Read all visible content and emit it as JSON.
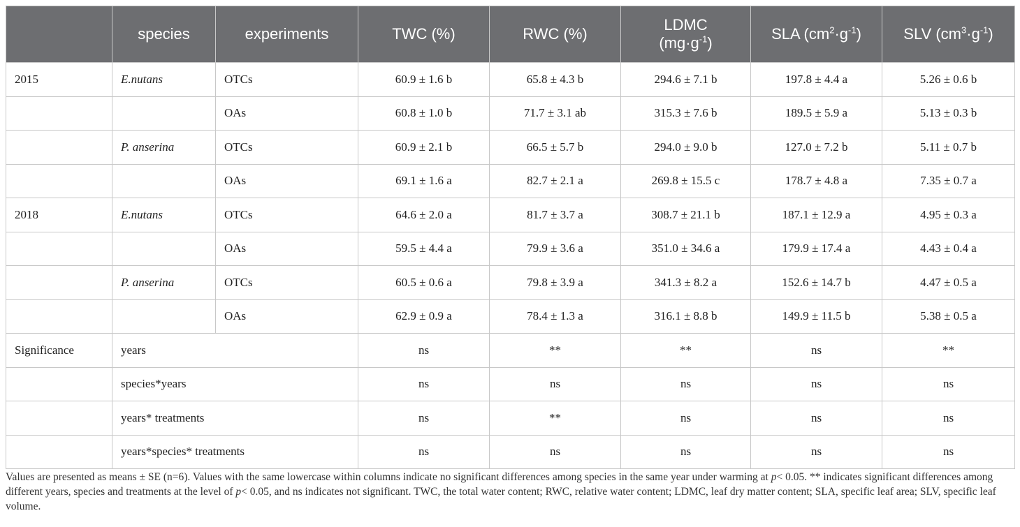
{
  "header": {
    "c0": "",
    "species": "species",
    "experiments": "experiments",
    "twc": "TWC (%)",
    "rwc": "RWC (%)",
    "ldmc_line1": "LDMC",
    "ldmc_line2_pre": "(mg·g",
    "ldmc_sup": "-1",
    "ldmc_post": ")",
    "sla_pre": "SLA (cm",
    "sla_sup1": "2",
    "sla_mid": "·g",
    "sla_sup2": "-1",
    "sla_post": ")",
    "slv_pre": "SLV (cm",
    "slv_sup1": "3",
    "slv_mid": "·g",
    "slv_sup2": "-1",
    "slv_post": ")"
  },
  "rows": [
    {
      "year": "2015",
      "species": "E.nutans",
      "exp": "OTCs",
      "twc": "60.9 ± 1.6 b",
      "rwc": "65.8 ± 4.3 b",
      "ldmc": "294.6 ± 7.1 b",
      "sla": "197.8 ± 4.4 a",
      "slv": "5.26 ± 0.6 b"
    },
    {
      "year": "",
      "species": "",
      "exp": "OAs",
      "twc": "60.8 ± 1.0 b",
      "rwc": "71.7 ± 3.1 ab",
      "ldmc": "315.3 ± 7.6 b",
      "sla": "189.5 ± 5.9 a",
      "slv": "5.13 ± 0.3 b"
    },
    {
      "year": "",
      "species": "P. anserina",
      "exp": "OTCs",
      "twc": "60.9 ± 2.1 b",
      "rwc": "66.5 ± 5.7 b",
      "ldmc": "294.0 ± 9.0 b",
      "sla": "127.0 ± 7.2 b",
      "slv": "5.11 ± 0.7 b"
    },
    {
      "year": "",
      "species": "",
      "exp": "OAs",
      "twc": "69.1 ± 1.6 a",
      "rwc": "82.7 ± 2.1 a",
      "ldmc": "269.8 ± 15.5 c",
      "sla": "178.7 ± 4.8 a",
      "slv": "7.35 ± 0.7 a"
    },
    {
      "year": "2018",
      "species": "E.nutans",
      "exp": "OTCs",
      "twc": "64.6 ± 2.0 a",
      "rwc": "81.7 ± 3.7 a",
      "ldmc": "308.7 ± 21.1 b",
      "sla": "187.1 ± 12.9 a",
      "slv": "4.95 ± 0.3 a"
    },
    {
      "year": "",
      "species": "",
      "exp": "OAs",
      "twc": "59.5 ± 4.4 a",
      "rwc": "79.9 ± 3.6 a",
      "ldmc": "351.0 ± 34.6 a",
      "sla": "179.9 ± 17.4 a",
      "slv": "4.43 ± 0.4 a"
    },
    {
      "year": "",
      "species": "P. anserina",
      "exp": "OTCs",
      "twc": "60.5 ± 0.6 a",
      "rwc": "79.8 ± 3.9 a",
      "ldmc": "341.3 ± 8.2 a",
      "sla": "152.6 ± 14.7 b",
      "slv": "4.47 ± 0.5 a"
    },
    {
      "year": "",
      "species": "",
      "exp": "OAs",
      "twc": "62.9 ± 0.9 a",
      "rwc": "78.4 ± 1.3 a",
      "ldmc": "316.1 ± 8.8 b",
      "sla": "149.9 ± 11.5 b",
      "slv": "5.38 ± 0.5 a"
    }
  ],
  "significance_label": "Significance",
  "sig_rows": [
    {
      "factor": "years",
      "twc": "ns",
      "rwc": "**",
      "ldmc": "**",
      "sla": "ns",
      "slv": "**"
    },
    {
      "factor": "species*years",
      "twc": "ns",
      "rwc": "ns",
      "ldmc": "ns",
      "sla": "ns",
      "slv": "ns"
    },
    {
      "factor": "years* treatments",
      "twc": "ns",
      "rwc": "**",
      "ldmc": "ns",
      "sla": "ns",
      "slv": "ns"
    },
    {
      "factor": "years*species* treatments",
      "twc": "ns",
      "rwc": "ns",
      "ldmc": "ns",
      "sla": "ns",
      "slv": "ns"
    }
  ],
  "footnote": {
    "part1": "Values are presented as means ± SE (n=6). Values with the same lowercase within columns indicate no significant differences among species in the same year under warming at ",
    "p1": "p",
    "part2": "< 0.05. ** indicates significant differences among different years, species and treatments at the level of ",
    "p2": "p",
    "part3": "< 0.05, and ns indicates not significant. TWC, the total water content; RWC, relative water content; LDMC, leaf dry matter content; SLA, specific leaf area; SLV, specific leaf volume."
  }
}
